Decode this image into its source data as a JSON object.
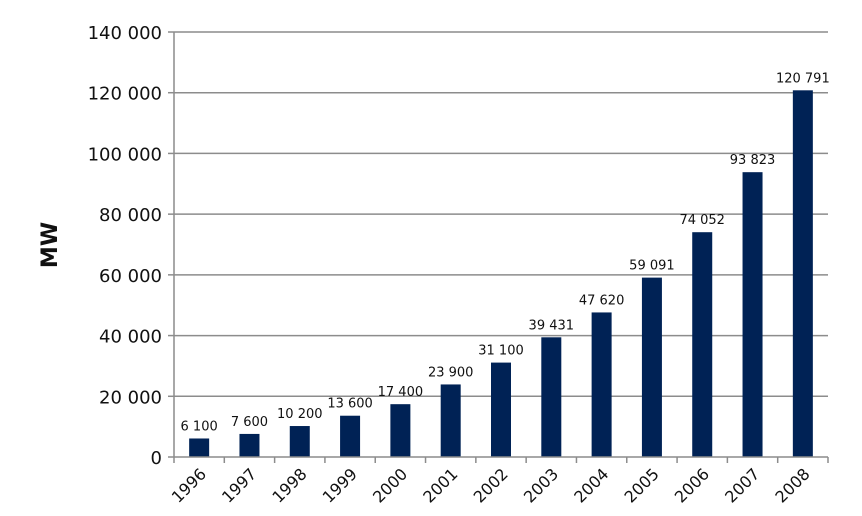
{
  "chart_data": {
    "type": "bar",
    "title": "",
    "xlabel": "",
    "ylabel": "MW",
    "ylim": [
      0,
      140000
    ],
    "yticks": [
      0,
      20000,
      40000,
      60000,
      80000,
      100000,
      120000,
      140000
    ],
    "ytick_labels": [
      "0",
      "20 000",
      "40 000",
      "60 000",
      "80 000",
      "100 000",
      "120 000",
      "140 000"
    ],
    "categories": [
      "1996",
      "1997",
      "1998",
      "1999",
      "2000",
      "2001",
      "2002",
      "2003",
      "2004",
      "2005",
      "2006",
      "2007",
      "2008"
    ],
    "values": [
      6100,
      7600,
      10200,
      13600,
      17400,
      23900,
      31100,
      39431,
      47620,
      59091,
      74052,
      93823,
      120791
    ],
    "data_labels": [
      "6 100",
      "7 600",
      "10 200",
      "13 600",
      "17 400",
      "23 900",
      "31 100",
      "39 431",
      "47 620",
      "59 091",
      "74 052",
      "93 823",
      "120 791"
    ],
    "grid": true,
    "legend": "none",
    "bar_color": "#002255"
  }
}
